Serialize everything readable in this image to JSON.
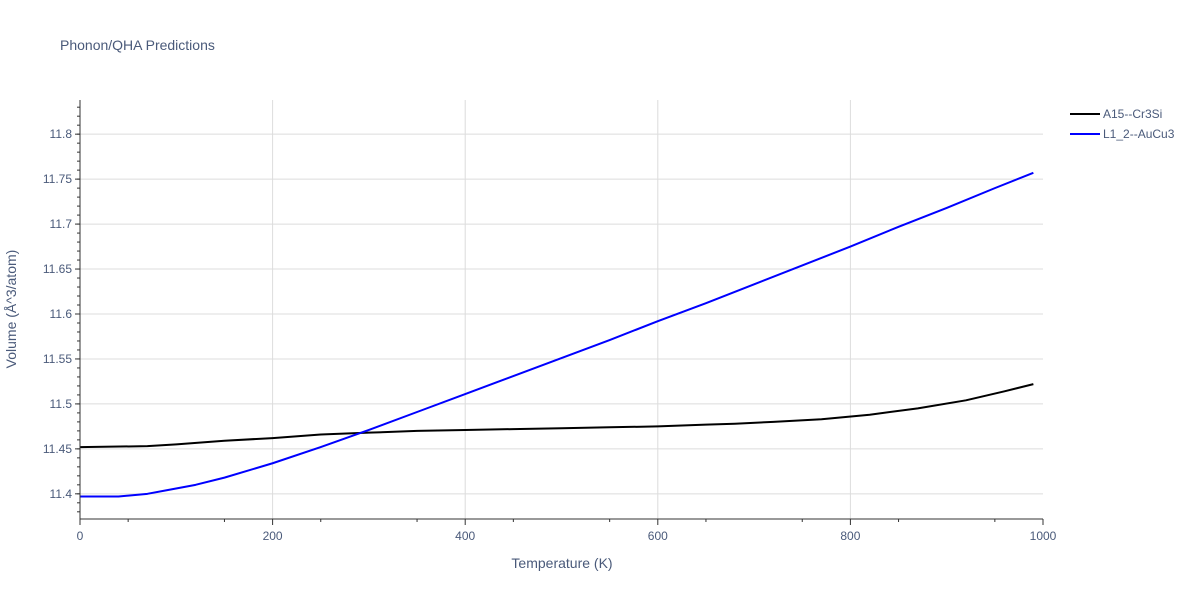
{
  "title": "Phonon/QHA Predictions",
  "colors": {
    "text": "#4a5a7a",
    "grid": "#dcdcdc",
    "axis": "#333333"
  },
  "chart_data": {
    "type": "line",
    "title": "Phonon/QHA Predictions",
    "xlabel": "Temperature (K)",
    "ylabel": "Volume (Å^3/atom)",
    "xlim": [
      0,
      1000
    ],
    "ylim": [
      11.372,
      11.838
    ],
    "x_ticks": [
      0,
      200,
      400,
      600,
      800,
      1000
    ],
    "x_tick_labels": [
      "0",
      "200",
      "400",
      "600",
      "800",
      "1000"
    ],
    "y_ticks": [
      11.4,
      11.45,
      11.5,
      11.55,
      11.6,
      11.65,
      11.7,
      11.75,
      11.8
    ],
    "y_tick_labels": [
      "11.4",
      "11.45",
      "11.5",
      "11.55",
      "11.6",
      "11.65",
      "11.7",
      "11.75",
      "11.8"
    ],
    "grid": true,
    "legend_position": "top-right",
    "series": [
      {
        "name": "A15--Cr3Si",
        "color": "#000000",
        "x": [
          0,
          70,
          100,
          150,
          200,
          250,
          300,
          350,
          400,
          450,
          500,
          550,
          600,
          650,
          680,
          720,
          770,
          820,
          870,
          920,
          960,
          990
        ],
        "y": [
          11.452,
          11.453,
          11.455,
          11.459,
          11.462,
          11.466,
          11.468,
          11.47,
          11.471,
          11.472,
          11.473,
          11.474,
          11.475,
          11.477,
          11.478,
          11.48,
          11.483,
          11.488,
          11.495,
          11.504,
          11.514,
          11.522
        ]
      },
      {
        "name": "L1_2--AuCu3",
        "color": "#0000ff",
        "x": [
          0,
          40,
          70,
          90,
          120,
          150,
          200,
          250,
          300,
          350,
          400,
          450,
          500,
          550,
          600,
          650,
          700,
          750,
          800,
          850,
          900,
          950,
          990
        ],
        "y": [
          11.397,
          11.397,
          11.4,
          11.404,
          11.41,
          11.418,
          11.434,
          11.452,
          11.471,
          11.491,
          11.511,
          11.531,
          11.551,
          11.571,
          11.592,
          11.612,
          11.633,
          11.654,
          11.675,
          11.697,
          11.718,
          11.74,
          11.757
        ]
      }
    ]
  }
}
